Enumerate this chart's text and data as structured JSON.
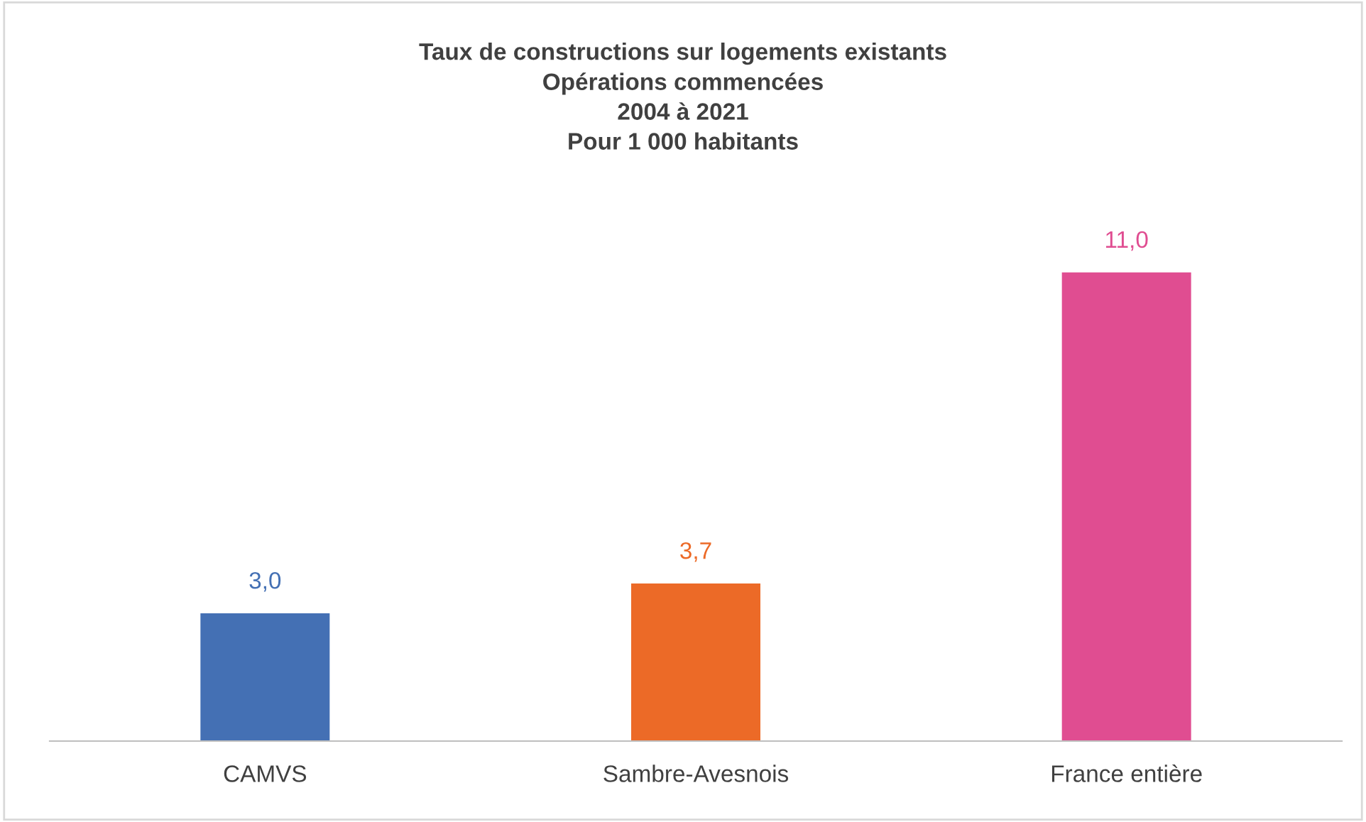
{
  "chart_data": {
    "type": "bar",
    "title": "Taux de constructions sur logements existants\nOpérations commencées\n2004 à 2021\nPour 1 000 habitants",
    "categories": [
      "CAMVS",
      "Sambre-Avesnois",
      "France entière"
    ],
    "values": [
      3.0,
      3.7,
      11.0
    ],
    "colors": [
      "#4470b4",
      "#ec6a27",
      "#e04d91"
    ],
    "value_labels": [
      "3,0",
      "3,7",
      "11,0"
    ],
    "grid": false
  }
}
